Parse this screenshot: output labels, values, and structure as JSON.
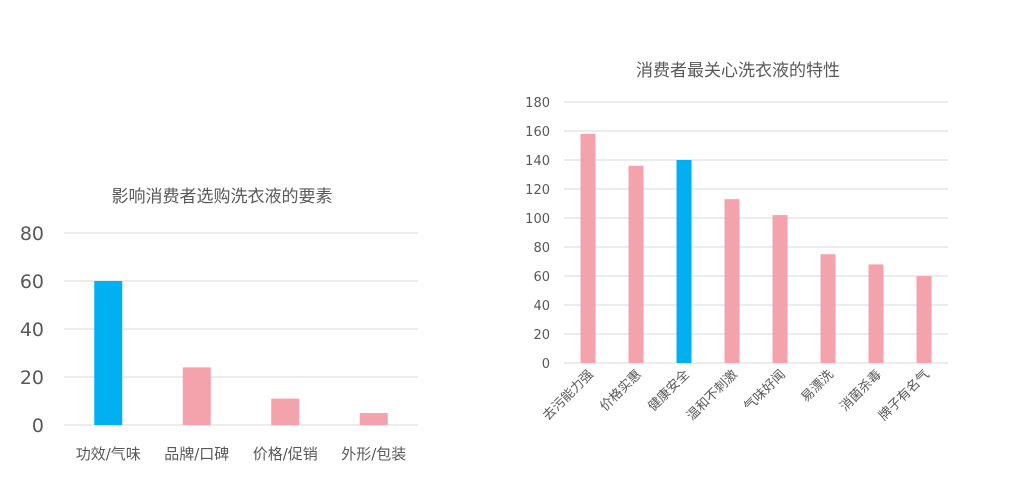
{
  "colors": {
    "default_bar": "#f4a2ab",
    "highlight_bar": "#00b0f0"
  },
  "chart_data": [
    {
      "type": "bar",
      "title": "影响消费者选购洗衣液的要素",
      "categories": [
        "功效/气味",
        "品牌/口碑",
        "价格/促销",
        "外形/包装"
      ],
      "values": [
        60,
        24,
        11,
        5
      ],
      "ylim": [
        0,
        80
      ],
      "yticks": [
        "0",
        "20",
        "40",
        "60",
        "80"
      ],
      "highlight_index": 0,
      "grid": true,
      "legend": "none"
    },
    {
      "type": "bar",
      "title": "消费者最关心洗衣液的特性",
      "categories": [
        "去污能力强",
        "价格实惠",
        "健康安全",
        "温和不刺激",
        "气味好闻",
        "易漂洗",
        "消菌杀毒",
        "牌子有名气"
      ],
      "values": [
        158,
        136,
        140,
        113,
        102,
        75,
        68,
        60
      ],
      "ylim": [
        0,
        180
      ],
      "yticks": [
        "0",
        "20",
        "40",
        "60",
        "80",
        "100",
        "120",
        "140",
        "160",
        "180"
      ],
      "highlight_index": 2,
      "grid": true,
      "legend": "none"
    }
  ]
}
